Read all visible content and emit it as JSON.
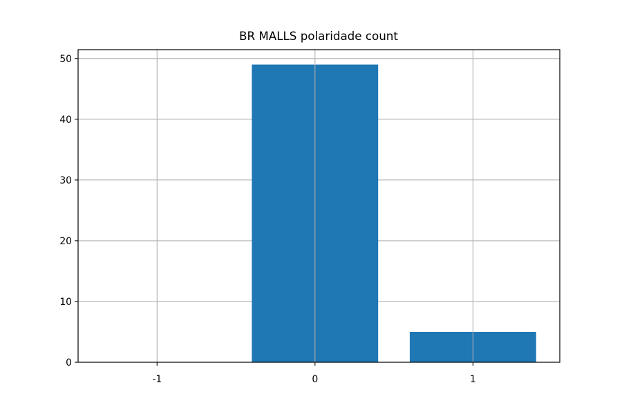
{
  "chart_data": {
    "type": "bar",
    "title": "BR MALLS polaridade count",
    "xlabel": "",
    "ylabel": "",
    "categories": [
      "-1",
      "0",
      "1"
    ],
    "values": [
      0,
      49,
      5
    ],
    "xlim": [
      -1.5,
      1.55
    ],
    "ylim": [
      0,
      51.45
    ],
    "yticks": [
      0,
      10,
      20,
      30,
      40,
      50
    ],
    "grid": true,
    "legend": "none",
    "colors": {
      "bar": "#1f77b4",
      "grid": "#b0b0b0",
      "axes": "#000000"
    }
  }
}
